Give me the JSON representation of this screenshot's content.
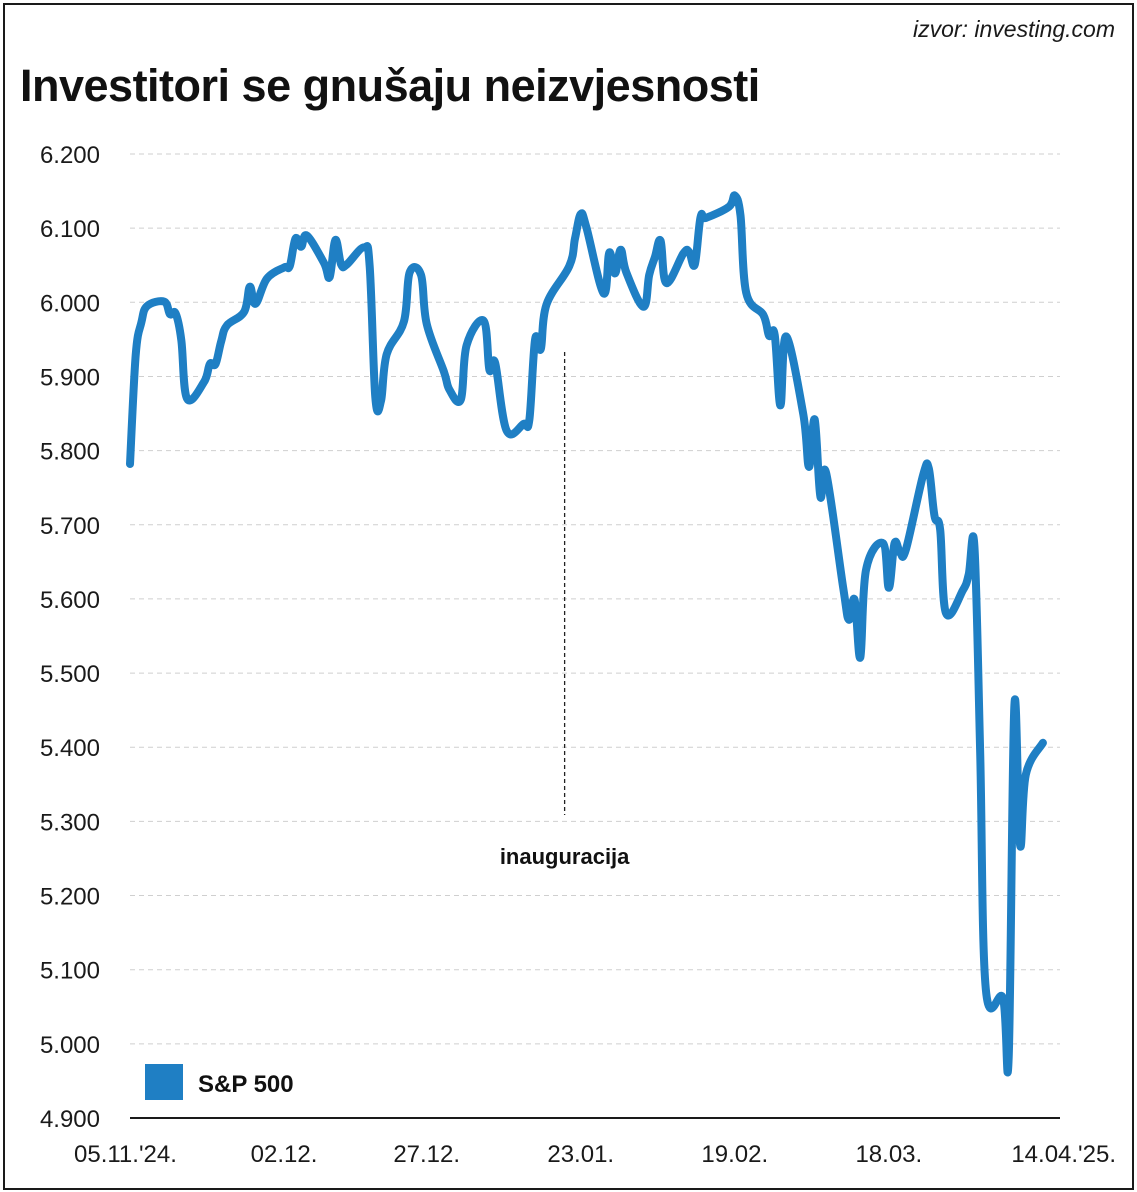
{
  "source": "izvor: investing.com",
  "chart_data": {
    "type": "line",
    "title": "Investitori se gnušaju neizvjesnosti",
    "xlabel": "",
    "ylabel": "",
    "ylim": [
      4900,
      6200
    ],
    "yticks": [
      4900,
      5000,
      5100,
      5200,
      5300,
      5400,
      5500,
      5600,
      5700,
      5800,
      5900,
      6000,
      6100,
      6200
    ],
    "ytick_labels": [
      "4.900",
      "5.000",
      "5.100",
      "5.200",
      "5.300",
      "5.400",
      "5.500",
      "5.600",
      "5.700",
      "5.800",
      "5.900",
      "6.000",
      "6.100",
      "6.200"
    ],
    "x_range": [
      "2024-11-05",
      "2025-04-17"
    ],
    "xticks": [
      "2024-11-05",
      "2024-12-02",
      "2024-12-27",
      "2025-01-23",
      "2025-02-19",
      "2025-03-18",
      "2025-04-14"
    ],
    "xtick_labels": [
      "05.11.'24.",
      "02.12.",
      "27.12.",
      "23.01.",
      "19.02.",
      "18.03.",
      "14.04.'25."
    ],
    "grid": true,
    "legend": "bottom-left",
    "series": [
      {
        "name": "S&P 500",
        "color": "#1f7fc4",
        "points": [
          [
            "2024-11-05",
            5782
          ],
          [
            "2024-11-06",
            5929
          ],
          [
            "2024-11-07",
            5973
          ],
          [
            "2024-11-08",
            5995
          ],
          [
            "2024-11-11",
            6001
          ],
          [
            "2024-11-12",
            5984
          ],
          [
            "2024-11-13",
            5985
          ],
          [
            "2024-11-14",
            5949
          ],
          [
            "2024-11-15",
            5870
          ],
          [
            "2024-11-18",
            5893
          ],
          [
            "2024-11-19",
            5917
          ],
          [
            "2024-11-20",
            5917
          ],
          [
            "2024-11-21",
            5948
          ],
          [
            "2024-11-22",
            5969
          ],
          [
            "2024-11-25",
            5987
          ],
          [
            "2024-11-26",
            6021
          ],
          [
            "2024-11-27",
            5998
          ],
          [
            "2024-11-29",
            6032
          ],
          [
            "2024-12-02",
            6047
          ],
          [
            "2024-12-03",
            6049
          ],
          [
            "2024-12-04",
            6086
          ],
          [
            "2024-12-05",
            6075
          ],
          [
            "2024-12-06",
            6090
          ],
          [
            "2024-12-09",
            6053
          ],
          [
            "2024-12-10",
            6034
          ],
          [
            "2024-12-11",
            6084
          ],
          [
            "2024-12-12",
            6051
          ],
          [
            "2024-12-13",
            6051
          ],
          [
            "2024-12-16",
            6074
          ],
          [
            "2024-12-17",
            6050
          ],
          [
            "2024-12-18",
            5872
          ],
          [
            "2024-12-19",
            5867
          ],
          [
            "2024-12-20",
            5930
          ],
          [
            "2024-12-23",
            5974
          ],
          [
            "2024-12-24",
            6040
          ],
          [
            "2024-12-26",
            6037
          ],
          [
            "2024-12-27",
            5971
          ],
          [
            "2024-12-30",
            5907
          ],
          [
            "2024-12-31",
            5882
          ],
          [
            "2025-01-02",
            5869
          ],
          [
            "2025-01-03",
            5942
          ],
          [
            "2025-01-06",
            5975
          ],
          [
            "2025-01-07",
            5909
          ],
          [
            "2025-01-08",
            5918
          ],
          [
            "2025-01-10",
            5827
          ],
          [
            "2025-01-13",
            5836
          ],
          [
            "2025-01-14",
            5842
          ],
          [
            "2025-01-15",
            5950
          ],
          [
            "2025-01-16",
            5937
          ],
          [
            "2025-01-17",
            5997
          ],
          [
            "2025-01-21",
            6049
          ],
          [
            "2025-01-22",
            6086
          ],
          [
            "2025-01-23",
            6119
          ],
          [
            "2025-01-24",
            6101
          ],
          [
            "2025-01-27",
            6012
          ],
          [
            "2025-01-28",
            6067
          ],
          [
            "2025-01-29",
            6039
          ],
          [
            "2025-01-30",
            6071
          ],
          [
            "2025-01-31",
            6040
          ],
          [
            "2025-02-03",
            5994
          ],
          [
            "2025-02-04",
            6037
          ],
          [
            "2025-02-05",
            6061
          ],
          [
            "2025-02-06",
            6083
          ],
          [
            "2025-02-07",
            6026
          ],
          [
            "2025-02-10",
            6066
          ],
          [
            "2025-02-11",
            6068
          ],
          [
            "2025-02-12",
            6051
          ],
          [
            "2025-02-13",
            6115
          ],
          [
            "2025-02-14",
            6114
          ],
          [
            "2025-02-18",
            6129
          ],
          [
            "2025-02-19",
            6144
          ],
          [
            "2025-02-20",
            6117
          ],
          [
            "2025-02-21",
            6013
          ],
          [
            "2025-02-24",
            5983
          ],
          [
            "2025-02-25",
            5955
          ],
          [
            "2025-02-26",
            5956
          ],
          [
            "2025-02-27",
            5861
          ],
          [
            "2025-02-28",
            5954
          ],
          [
            "2025-03-03",
            5849
          ],
          [
            "2025-03-04",
            5778
          ],
          [
            "2025-03-05",
            5842
          ],
          [
            "2025-03-06",
            5738
          ],
          [
            "2025-03-07",
            5770
          ],
          [
            "2025-03-10",
            5615
          ],
          [
            "2025-03-11",
            5572
          ],
          [
            "2025-03-12",
            5599
          ],
          [
            "2025-03-13",
            5521
          ],
          [
            "2025-03-14",
            5639
          ],
          [
            "2025-03-17",
            5675
          ],
          [
            "2025-03-18",
            5615
          ],
          [
            "2025-03-19",
            5675
          ],
          [
            "2025-03-20",
            5662
          ],
          [
            "2025-03-21",
            5667
          ],
          [
            "2025-03-24",
            5767
          ],
          [
            "2025-03-25",
            5776
          ],
          [
            "2025-03-26",
            5712
          ],
          [
            "2025-03-27",
            5693
          ],
          [
            "2025-03-28",
            5581
          ],
          [
            "2025-03-31",
            5612
          ],
          [
            "2025-04-01",
            5633
          ],
          [
            "2025-04-02",
            5671
          ],
          [
            "2025-04-03",
            5397
          ],
          [
            "2025-04-04",
            5074
          ],
          [
            "2025-04-07",
            5062
          ],
          [
            "2025-04-08",
            4982
          ],
          [
            "2025-04-09",
            5457
          ],
          [
            "2025-04-10",
            5268
          ],
          [
            "2025-04-11",
            5363
          ],
          [
            "2025-04-14",
            5406
          ]
        ]
      }
    ],
    "annotations": [
      {
        "date": "2025-01-20",
        "text": "inauguracija"
      }
    ]
  }
}
